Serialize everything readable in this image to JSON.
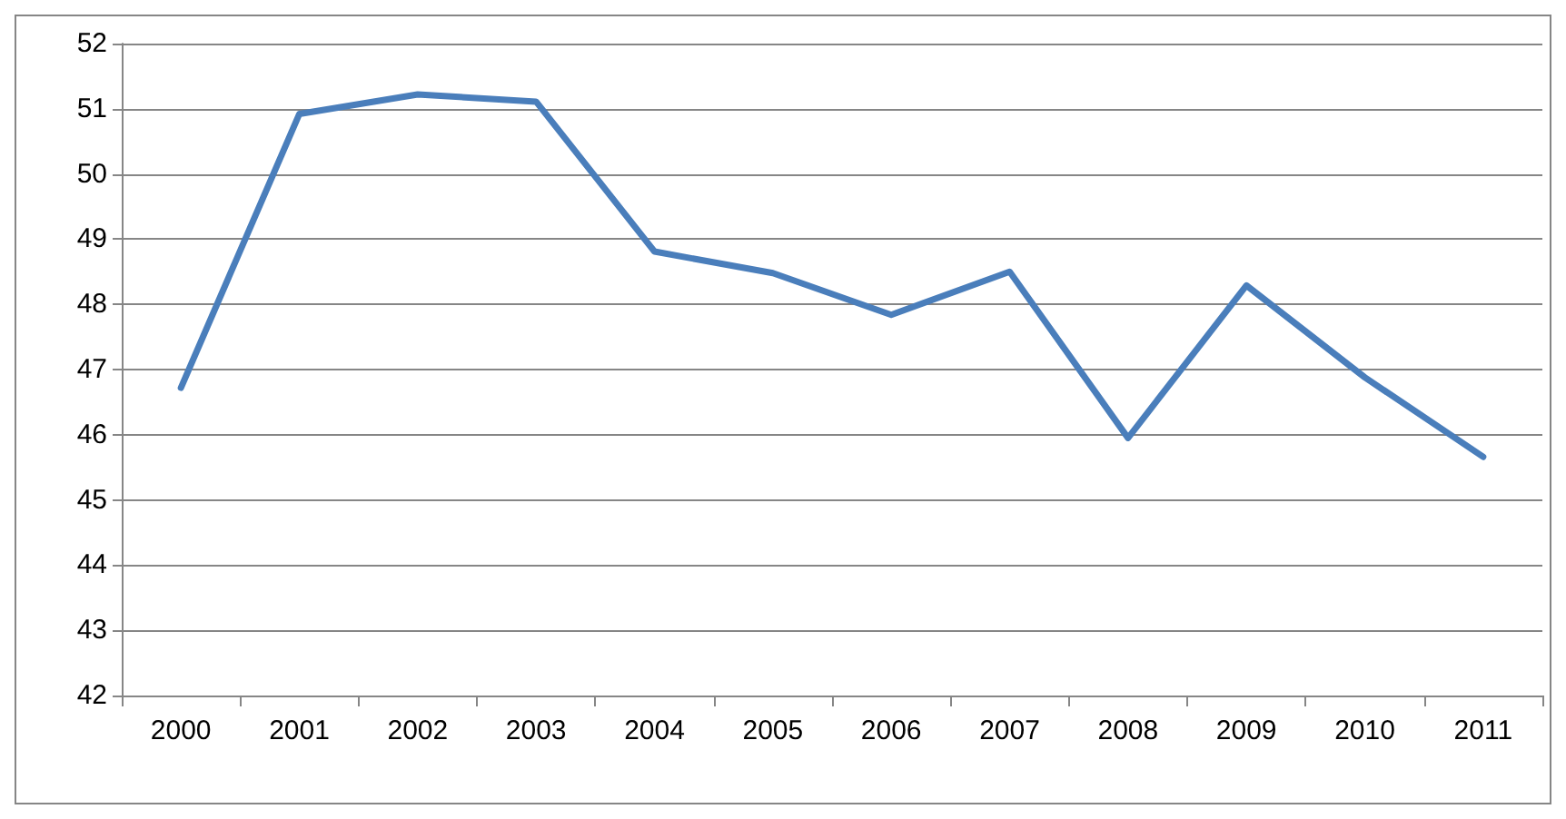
{
  "chart_data": {
    "type": "line",
    "categories": [
      "2000",
      "2001",
      "2002",
      "2003",
      "2004",
      "2005",
      "2006",
      "2007",
      "2008",
      "2009",
      "2010",
      "2011"
    ],
    "series": [
      {
        "color": "#4a7ebb",
        "values": [
          46.72,
          50.92,
          51.22,
          51.11,
          48.81,
          48.48,
          47.84,
          48.5,
          45.95,
          48.29,
          46.88,
          45.66
        ]
      }
    ],
    "ylim": [
      42,
      52
    ],
    "yticks": [
      42,
      43,
      44,
      45,
      46,
      47,
      48,
      49,
      50,
      51,
      52
    ],
    "grid": "y",
    "marker": "none",
    "line_style": "solid"
  }
}
